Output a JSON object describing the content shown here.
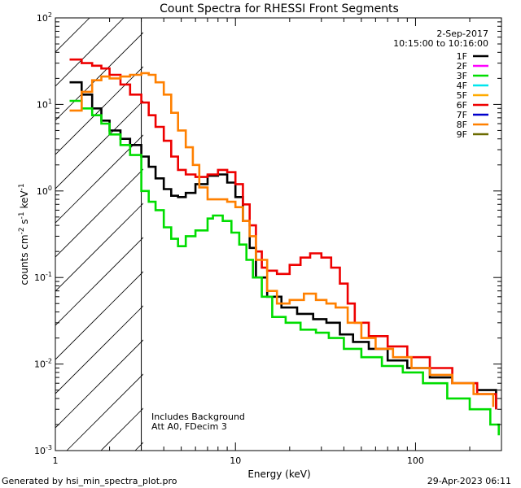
{
  "chart_data": {
    "type": "line",
    "title": "Count Spectra for RHESSI Front Segments",
    "xlabel": "Energy (keV)",
    "ylabel": {
      "base": "counts cm",
      "exp1": "-2",
      "mid": " s",
      "exp2": "-1",
      "mid2": " keV",
      "exp3": "-1"
    },
    "xscale": "log",
    "yscale": "log",
    "xlim": [
      1,
      300
    ],
    "ylim": [
      0.001,
      100
    ],
    "x_ticks": [
      {
        "v": 1,
        "label": "1"
      },
      {
        "v": 10,
        "label": "10"
      },
      {
        "v": 100,
        "label": "100"
      }
    ],
    "y_ticks": [
      {
        "v": 0.001,
        "base": "10",
        "exp": "-3"
      },
      {
        "v": 0.01,
        "base": "10",
        "exp": "-2"
      },
      {
        "v": 0.1,
        "base": "10",
        "exp": "-1"
      },
      {
        "v": 1,
        "base": "10",
        "exp": "0"
      },
      {
        "v": 10,
        "base": "10",
        "exp": "1"
      },
      {
        "v": 100,
        "base": "10",
        "exp": "2"
      }
    ],
    "date": "2-Sep-2017",
    "time_range": "10:15:00 to 10:16:00",
    "legend_position": "top-right",
    "legend": [
      {
        "name": "1F",
        "color": "#000000"
      },
      {
        "name": "2F",
        "color": "#ff00ff"
      },
      {
        "name": "3F",
        "color": "#00dd00"
      },
      {
        "name": "4F",
        "color": "#00e5ee"
      },
      {
        "name": "5F",
        "color": "#ffaa00"
      },
      {
        "name": "6F",
        "color": "#ee0000"
      },
      {
        "name": "7F",
        "color": "#0000cc"
      },
      {
        "name": "8F",
        "color": "#ff8000"
      },
      {
        "name": "9F",
        "color": "#6b6b00"
      }
    ],
    "shaded_region": {
      "x_start": 1,
      "x_end": 3,
      "style": "diagonal-hatch"
    },
    "annotations": [
      "Includes Background",
      "Att A0, FDecim 3"
    ],
    "series": [
      {
        "name": "1F",
        "color": "#000000",
        "points": [
          [
            1.2,
            18
          ],
          [
            1.4,
            13
          ],
          [
            1.6,
            9
          ],
          [
            1.8,
            6.5
          ],
          [
            2,
            5
          ],
          [
            2.3,
            4
          ],
          [
            2.6,
            3.4
          ],
          [
            3,
            2.5
          ],
          [
            3.3,
            1.9
          ],
          [
            3.6,
            1.4
          ],
          [
            4,
            1.05
          ],
          [
            4.4,
            0.88
          ],
          [
            4.8,
            0.85
          ],
          [
            5.3,
            0.95
          ],
          [
            6,
            1.2
          ],
          [
            7,
            1.5
          ],
          [
            8,
            1.55
          ],
          [
            9,
            1.25
          ],
          [
            10,
            0.85
          ],
          [
            11,
            0.45
          ],
          [
            12,
            0.22
          ],
          [
            13,
            0.1
          ],
          [
            15,
            0.06
          ],
          [
            18,
            0.045
          ],
          [
            22,
            0.038
          ],
          [
            27,
            0.033
          ],
          [
            32,
            0.03
          ],
          [
            38,
            0.022
          ],
          [
            45,
            0.018
          ],
          [
            55,
            0.015
          ],
          [
            70,
            0.011
          ],
          [
            90,
            0.009
          ],
          [
            120,
            0.007
          ],
          [
            160,
            0.006
          ],
          [
            220,
            0.005
          ],
          [
            280,
            0.003
          ]
        ]
      },
      {
        "name": "3F",
        "color": "#00dd00",
        "points": [
          [
            1.2,
            11
          ],
          [
            1.4,
            9
          ],
          [
            1.6,
            7.5
          ],
          [
            1.8,
            6
          ],
          [
            2,
            4.5
          ],
          [
            2.3,
            3.4
          ],
          [
            2.6,
            2.6
          ],
          [
            3,
            1.0
          ],
          [
            3.3,
            0.75
          ],
          [
            3.6,
            0.6
          ],
          [
            4,
            0.38
          ],
          [
            4.4,
            0.28
          ],
          [
            4.8,
            0.23
          ],
          [
            5.3,
            0.3
          ],
          [
            6,
            0.35
          ],
          [
            7,
            0.48
          ],
          [
            7.5,
            0.52
          ],
          [
            8.5,
            0.45
          ],
          [
            9.5,
            0.33
          ],
          [
            10.5,
            0.24
          ],
          [
            11.5,
            0.16
          ],
          [
            12.5,
            0.1
          ],
          [
            14,
            0.06
          ],
          [
            16,
            0.035
          ],
          [
            19,
            0.03
          ],
          [
            23,
            0.025
          ],
          [
            28,
            0.023
          ],
          [
            33,
            0.02
          ],
          [
            40,
            0.015
          ],
          [
            50,
            0.012
          ],
          [
            65,
            0.0095
          ],
          [
            85,
            0.008
          ],
          [
            110,
            0.006
          ],
          [
            150,
            0.004
          ],
          [
            200,
            0.003
          ],
          [
            260,
            0.002
          ],
          [
            290,
            0.0015
          ]
        ]
      },
      {
        "name": "6F",
        "color": "#ee0000",
        "points": [
          [
            1.2,
            33
          ],
          [
            1.4,
            30
          ],
          [
            1.6,
            28
          ],
          [
            1.8,
            26
          ],
          [
            2,
            22
          ],
          [
            2.3,
            17
          ],
          [
            2.6,
            13
          ],
          [
            3,
            10.5
          ],
          [
            3.3,
            7.5
          ],
          [
            3.6,
            5.5
          ],
          [
            4,
            3.8
          ],
          [
            4.4,
            2.5
          ],
          [
            4.8,
            1.75
          ],
          [
            5.3,
            1.55
          ],
          [
            6,
            1.45
          ],
          [
            7,
            1.55
          ],
          [
            8,
            1.75
          ],
          [
            9,
            1.65
          ],
          [
            10,
            1.2
          ],
          [
            11,
            0.7
          ],
          [
            12,
            0.4
          ],
          [
            13,
            0.2
          ],
          [
            14,
            0.13
          ],
          [
            15,
            0.12
          ],
          [
            17,
            0.11
          ],
          [
            20,
            0.14
          ],
          [
            23,
            0.17
          ],
          [
            26,
            0.19
          ],
          [
            30,
            0.17
          ],
          [
            34,
            0.13
          ],
          [
            38,
            0.085
          ],
          [
            42,
            0.05
          ],
          [
            46,
            0.03
          ],
          [
            55,
            0.021
          ],
          [
            70,
            0.016
          ],
          [
            90,
            0.012
          ],
          [
            120,
            0.009
          ],
          [
            160,
            0.006
          ],
          [
            220,
            0.0045
          ],
          [
            280,
            0.003
          ]
        ]
      },
      {
        "name": "8F",
        "color": "#ff8000",
        "points": [
          [
            1.2,
            8.5
          ],
          [
            1.4,
            14
          ],
          [
            1.6,
            19
          ],
          [
            1.8,
            21
          ],
          [
            2,
            20
          ],
          [
            2.3,
            21
          ],
          [
            2.6,
            22
          ],
          [
            3,
            23
          ],
          [
            3.3,
            22
          ],
          [
            3.6,
            18
          ],
          [
            4,
            13
          ],
          [
            4.4,
            8
          ],
          [
            4.8,
            5
          ],
          [
            5.3,
            3.2
          ],
          [
            5.8,
            2
          ],
          [
            6.3,
            1.1
          ],
          [
            7,
            0.8
          ],
          [
            8,
            0.8
          ],
          [
            9,
            0.75
          ],
          [
            10,
            0.65
          ],
          [
            11,
            0.45
          ],
          [
            12,
            0.3
          ],
          [
            13,
            0.16
          ],
          [
            15,
            0.07
          ],
          [
            17,
            0.05
          ],
          [
            20,
            0.055
          ],
          [
            24,
            0.065
          ],
          [
            28,
            0.055
          ],
          [
            32,
            0.05
          ],
          [
            36,
            0.045
          ],
          [
            42,
            0.03
          ],
          [
            50,
            0.02
          ],
          [
            60,
            0.015
          ],
          [
            75,
            0.012
          ],
          [
            95,
            0.009
          ],
          [
            120,
            0.0075
          ],
          [
            160,
            0.006
          ],
          [
            210,
            0.0045
          ],
          [
            270,
            0.0032
          ]
        ]
      }
    ]
  },
  "footer": {
    "generated_by": "Generated by hsi_min_spectra_plot.pro",
    "timestamp": "29-Apr-2023 06:11"
  }
}
